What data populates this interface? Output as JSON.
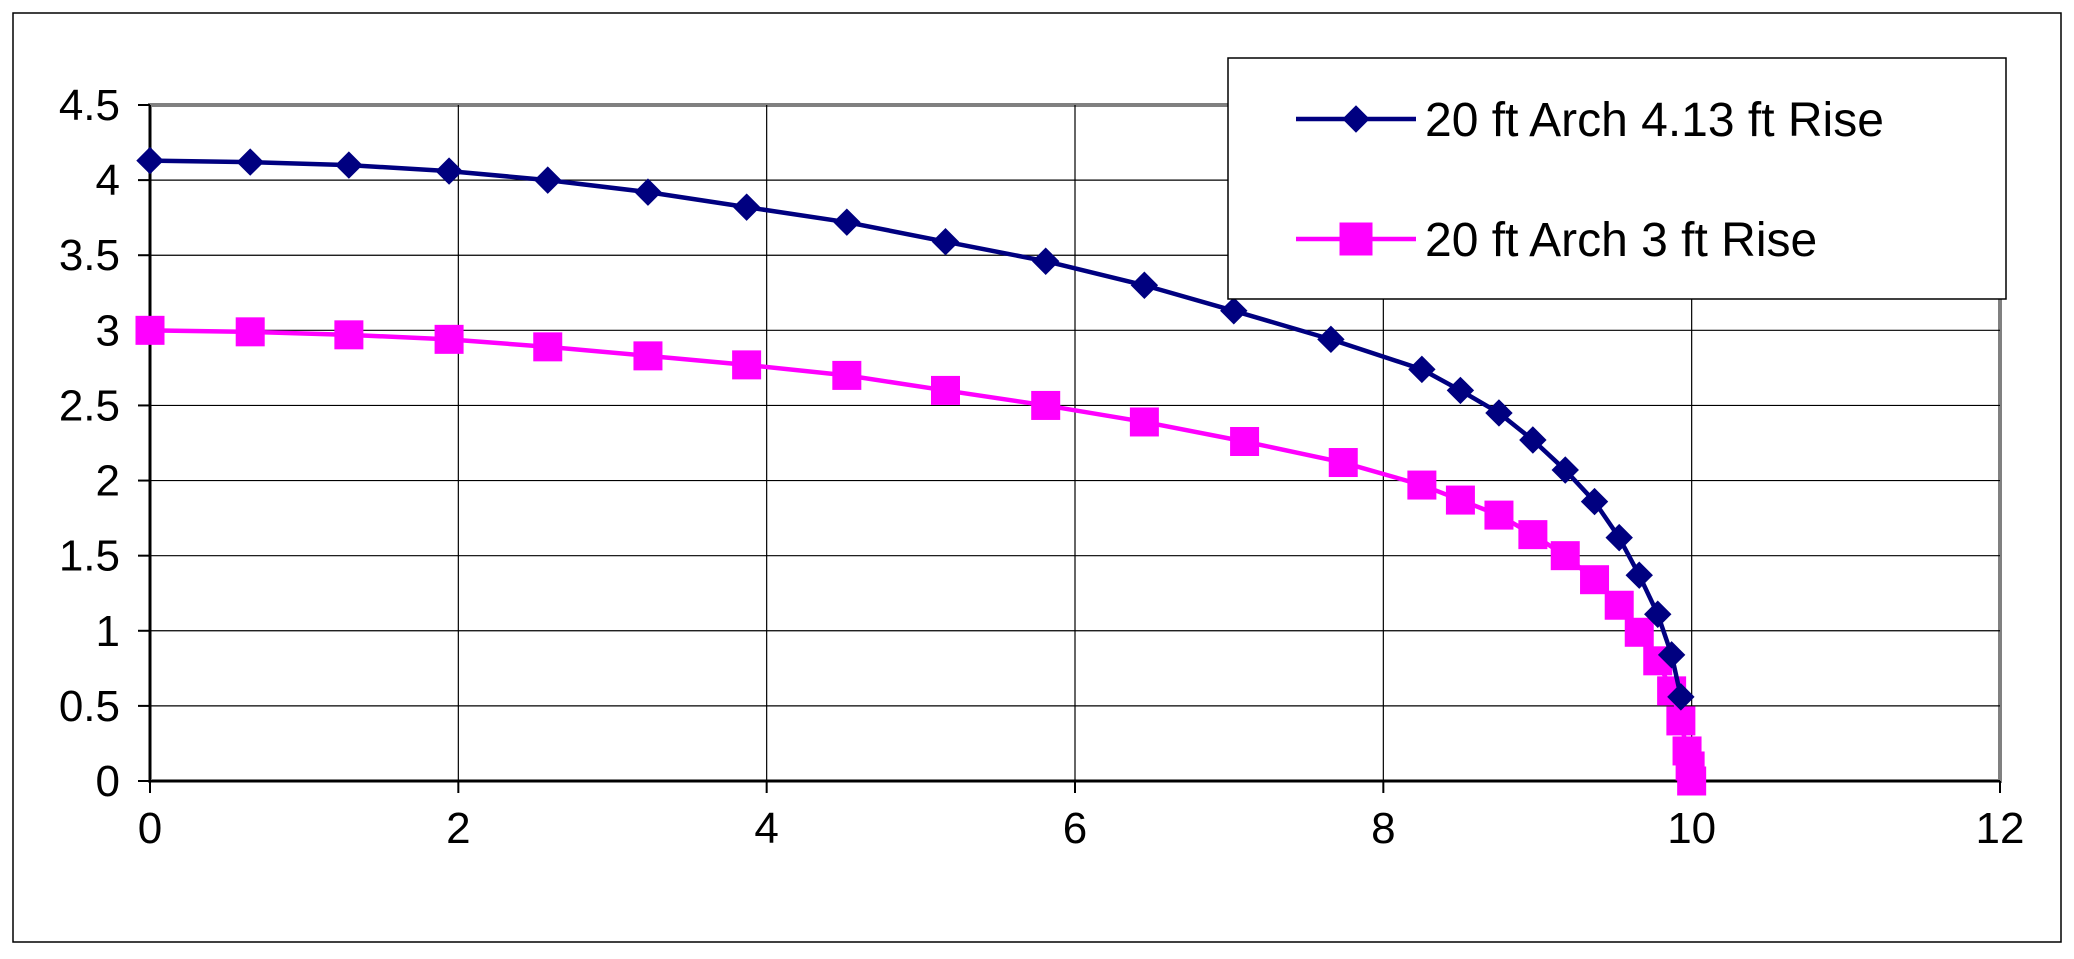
{
  "chart_data": {
    "type": "scatter",
    "title": "",
    "xlabel": "",
    "ylabel": "",
    "xlim": [
      0,
      12
    ],
    "ylim": [
      0,
      4.5
    ],
    "x_ticks": [
      0,
      2,
      4,
      6,
      8,
      10,
      12
    ],
    "y_ticks": [
      0,
      0.5,
      1,
      1.5,
      2,
      2.5,
      3,
      3.5,
      4,
      4.5
    ],
    "x_tick_labels": [
      "0",
      "2",
      "4",
      "6",
      "8",
      "10",
      "12"
    ],
    "y_tick_labels": [
      "0",
      "0.5",
      "1",
      "1.5",
      "2",
      "2.5",
      "3",
      "3.5",
      "4",
      "4.5"
    ],
    "grid": true,
    "legend_position": "top-right",
    "series": [
      {
        "name": "20 ft Arch 4.13 ft Rise",
        "color": "#000080",
        "marker": "diamond",
        "x": [
          0,
          0.65,
          1.29,
          1.94,
          2.58,
          3.23,
          3.87,
          4.52,
          5.16,
          5.81,
          6.45,
          7.03,
          7.66,
          8.25,
          8.5,
          8.75,
          8.97,
          9.18,
          9.37,
          9.53,
          9.66,
          9.78,
          9.87,
          9.93
        ],
        "y": [
          4.13,
          4.12,
          4.1,
          4.06,
          4.0,
          3.92,
          3.82,
          3.72,
          3.59,
          3.46,
          3.3,
          3.13,
          2.94,
          2.74,
          2.6,
          2.45,
          2.27,
          2.07,
          1.86,
          1.62,
          1.37,
          1.11,
          0.84,
          0.56
        ]
      },
      {
        "name": "20 ft Arch 3 ft Rise",
        "color": "#FF00FF",
        "marker": "square",
        "x": [
          0,
          0.65,
          1.29,
          1.94,
          2.58,
          3.23,
          3.87,
          4.52,
          5.16,
          5.81,
          6.45,
          7.1,
          7.74,
          8.25,
          8.5,
          8.75,
          8.97,
          9.18,
          9.37,
          9.53,
          9.66,
          9.78,
          9.87,
          9.93,
          9.97,
          9.99,
          10.0
        ],
        "y": [
          3.0,
          2.99,
          2.97,
          2.94,
          2.89,
          2.83,
          2.77,
          2.7,
          2.6,
          2.5,
          2.39,
          2.26,
          2.12,
          1.97,
          1.87,
          1.77,
          1.64,
          1.5,
          1.34,
          1.17,
          0.99,
          0.8,
          0.6,
          0.4,
          0.2,
          0.1,
          0
        ]
      }
    ]
  }
}
